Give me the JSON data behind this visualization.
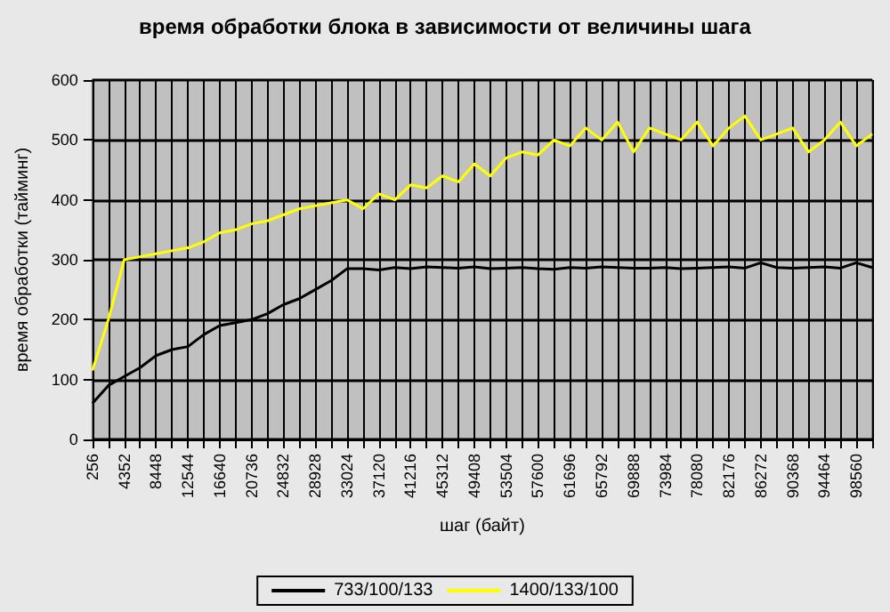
{
  "chart_data": {
    "type": "line",
    "title": "время обработки блока в зависимости от величины шага",
    "xlabel": "шаг (байт)",
    "ylabel": "время обработки (тайминг)",
    "x": [
      256,
      2304,
      4352,
      6400,
      8448,
      10496,
      12544,
      14592,
      16640,
      18688,
      20736,
      22784,
      24832,
      26880,
      28928,
      30976,
      33024,
      35072,
      37120,
      39168,
      41216,
      43264,
      45312,
      47360,
      49408,
      51456,
      53504,
      55552,
      57600,
      59648,
      61696,
      63744,
      65792,
      67840,
      69888,
      71936,
      73984,
      76032,
      78080,
      80128,
      82176,
      84224,
      86272,
      88320,
      90368,
      92416,
      94464,
      96512,
      98560,
      100608
    ],
    "series": [
      {
        "name": "733/100/133",
        "color": "#000000",
        "values": [
          60,
          90,
          105,
          120,
          140,
          150,
          155,
          175,
          190,
          195,
          200,
          210,
          225,
          235,
          250,
          265,
          285,
          285,
          283,
          287,
          285,
          288,
          287,
          286,
          288,
          285,
          286,
          287,
          285,
          284,
          287,
          286,
          288,
          287,
          286,
          286,
          287,
          285,
          286,
          287,
          288,
          286,
          295,
          287,
          286,
          287,
          288,
          286,
          295,
          287
        ]
      },
      {
        "name": "1400/133/100",
        "color": "#ffff00",
        "values": [
          115,
          200,
          300,
          305,
          310,
          315,
          320,
          330,
          345,
          350,
          360,
          365,
          375,
          385,
          390,
          395,
          400,
          385,
          410,
          400,
          425,
          420,
          440,
          430,
          460,
          440,
          470,
          480,
          475,
          500,
          490,
          520,
          500,
          530,
          480,
          520,
          510,
          500,
          530,
          490,
          520,
          540,
          500,
          510,
          520,
          480,
          500,
          530,
          490,
          510
        ]
      }
    ],
    "xlim": [
      256,
      100608
    ],
    "xticks": [
      256,
      {
        "value": 2304,
        "label": null
      },
      4352,
      {
        "value": 6400,
        "label": null
      },
      8448,
      {
        "value": 10496,
        "label": null
      },
      12544,
      {
        "value": 14592,
        "label": null
      },
      16640,
      {
        "value": 18688,
        "label": null
      },
      20736,
      {
        "value": 22784,
        "label": null
      },
      24832,
      {
        "value": 26880,
        "label": null
      },
      28928,
      {
        "value": 30976,
        "label": null
      },
      33024,
      {
        "value": 35072,
        "label": null
      },
      37120,
      {
        "value": 39168,
        "label": null
      },
      41216,
      {
        "value": 43264,
        "label": null
      },
      45312,
      {
        "value": 47360,
        "label": null
      },
      49408,
      {
        "value": 51456,
        "label": null
      },
      53504,
      {
        "value": 55552,
        "label": null
      },
      57600,
      {
        "value": 59648,
        "label": null
      },
      61696,
      {
        "value": 63744,
        "label": null
      },
      65792,
      {
        "value": 67840,
        "label": null
      },
      69888,
      {
        "value": 71936,
        "label": null
      },
      73984,
      {
        "value": 76032,
        "label": null
      },
      78080,
      {
        "value": 80128,
        "label": null
      },
      82176,
      {
        "value": 84224,
        "label": null
      },
      86272,
      {
        "value": 88320,
        "label": null
      },
      90368,
      {
        "value": 92416,
        "label": null
      },
      94464,
      {
        "value": 96512,
        "label": null
      },
      98560,
      {
        "value": 100608,
        "label": null
      }
    ],
    "ylim": [
      0,
      600
    ],
    "yticks": [
      0,
      100,
      200,
      300,
      400,
      500,
      600
    ],
    "grid": true,
    "legend": "bottom",
    "marker": "none",
    "line_style": "solid"
  }
}
